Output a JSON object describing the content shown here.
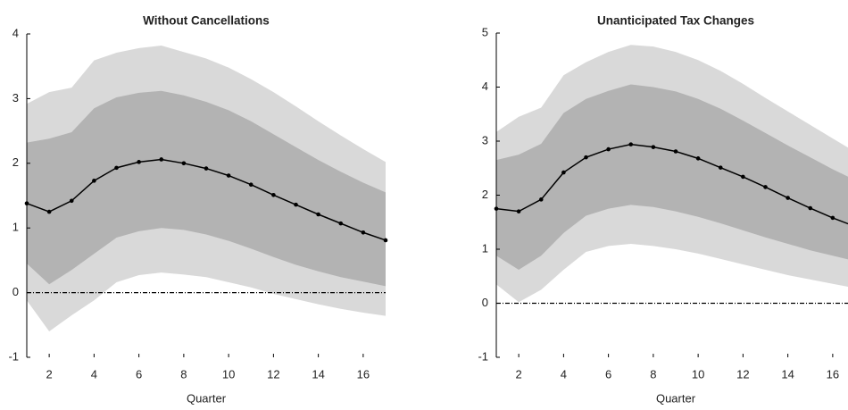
{
  "chart_data": [
    {
      "type": "line",
      "title": "Without Cancellations",
      "x_label": "Quarter",
      "x": [
        1,
        2,
        3,
        4,
        5,
        6,
        7,
        8,
        9,
        10,
        11,
        12,
        13,
        14,
        15,
        16,
        17
      ],
      "values": [
        1.38,
        1.25,
        1.42,
        1.73,
        1.93,
        2.02,
        2.06,
        2.0,
        1.92,
        1.81,
        1.67,
        1.51,
        1.36,
        1.21,
        1.07,
        0.93,
        0.81
      ],
      "color": "#000000",
      "bands": [
        {
          "color": "#d9d9d9",
          "upper": [
            2.92,
            3.1,
            3.17,
            3.59,
            3.71,
            3.78,
            3.82,
            3.72,
            3.62,
            3.48,
            3.3,
            3.1,
            2.88,
            2.65,
            2.43,
            2.22,
            2.02
          ],
          "lower": [
            -0.12,
            -0.6,
            -0.35,
            -0.12,
            0.16,
            0.27,
            0.31,
            0.28,
            0.24,
            0.16,
            0.08,
            -0.02,
            -0.1,
            -0.18,
            -0.25,
            -0.31,
            -0.36
          ]
        },
        {
          "color": "#b3b3b3",
          "upper": [
            2.32,
            2.38,
            2.48,
            2.85,
            3.02,
            3.09,
            3.12,
            3.05,
            2.95,
            2.82,
            2.65,
            2.45,
            2.25,
            2.05,
            1.87,
            1.7,
            1.55
          ],
          "lower": [
            0.45,
            0.13,
            0.35,
            0.6,
            0.85,
            0.95,
            1.0,
            0.97,
            0.9,
            0.8,
            0.68,
            0.55,
            0.43,
            0.33,
            0.24,
            0.17,
            0.1
          ]
        }
      ],
      "reference_line": 0,
      "xlim": [
        1,
        17
      ],
      "xticks": [
        2,
        4,
        6,
        8,
        10,
        12,
        14,
        16
      ],
      "ylim": [
        -1,
        4
      ],
      "yticks": [
        -1,
        0,
        1,
        2,
        3,
        4
      ]
    },
    {
      "type": "line",
      "title": "Unanticipated Tax Changes",
      "x_label": "Quarter",
      "x": [
        1,
        2,
        3,
        4,
        5,
        6,
        7,
        8,
        9,
        10,
        11,
        12,
        13,
        14,
        15,
        16,
        17
      ],
      "values": [
        1.75,
        1.7,
        1.92,
        2.42,
        2.7,
        2.85,
        2.94,
        2.89,
        2.81,
        2.68,
        2.51,
        2.34,
        2.15,
        1.95,
        1.76,
        1.58,
        1.42
      ],
      "color": "#000000",
      "bands": [
        {
          "color": "#d9d9d9",
          "upper": [
            3.17,
            3.45,
            3.62,
            4.22,
            4.46,
            4.65,
            4.78,
            4.75,
            4.65,
            4.5,
            4.3,
            4.06,
            3.8,
            3.55,
            3.3,
            3.05,
            2.8
          ],
          "lower": [
            0.35,
            0.02,
            0.25,
            0.62,
            0.95,
            1.06,
            1.1,
            1.06,
            1.0,
            0.92,
            0.82,
            0.72,
            0.62,
            0.52,
            0.44,
            0.36,
            0.28
          ]
        },
        {
          "color": "#b3b3b3",
          "upper": [
            2.65,
            2.75,
            2.95,
            3.52,
            3.78,
            3.93,
            4.05,
            4.0,
            3.92,
            3.78,
            3.6,
            3.38,
            3.15,
            2.92,
            2.7,
            2.48,
            2.28
          ],
          "lower": [
            0.88,
            0.62,
            0.88,
            1.3,
            1.62,
            1.75,
            1.82,
            1.78,
            1.7,
            1.6,
            1.48,
            1.35,
            1.22,
            1.1,
            0.98,
            0.88,
            0.78
          ]
        }
      ],
      "reference_line": 0,
      "xlim": [
        1,
        17
      ],
      "xticks": [
        2,
        4,
        6,
        8,
        10,
        12,
        14,
        16
      ],
      "ylim": [
        -1,
        5
      ],
      "yticks": [
        -1,
        0,
        1,
        2,
        3,
        4,
        5
      ]
    }
  ]
}
